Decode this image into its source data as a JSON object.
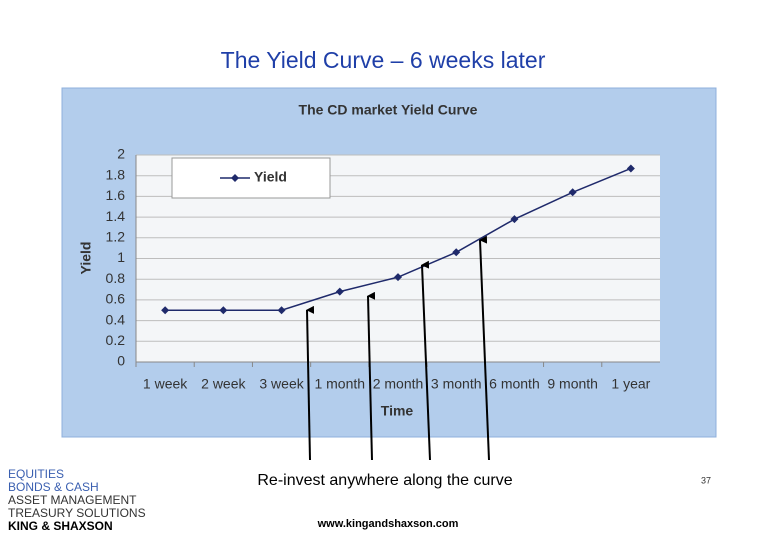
{
  "slide": {
    "title": "The Yield Curve – 6 weeks later",
    "caption": "Re-invest anywhere along the curve",
    "page_number": "37",
    "website": "www.kingandshaxson.com",
    "logo": [
      "EQUITIES",
      "BONDS & CASH",
      "ASSET MANAGEMENT",
      "TREASURY SOLUTIONS",
      "KING & SHAXSON"
    ]
  },
  "chart_data": {
    "type": "line",
    "title": "The CD market Yield Curve",
    "x_label": "Time",
    "y_label": "Yield",
    "categories": [
      "1 week",
      "2 week",
      "3 week",
      "1 month",
      "2 month",
      "3 month",
      "6 month",
      "9 month",
      "1 year"
    ],
    "series": [
      {
        "name": "Yield",
        "color": "#1f2a6b",
        "values": [
          0.5,
          0.5,
          0.5,
          0.68,
          0.82,
          1.06,
          1.38,
          1.64,
          1.87
        ]
      }
    ],
    "ylim": [
      0,
      2
    ],
    "yticks": [
      0,
      0.2,
      0.4,
      0.6,
      0.8,
      1,
      1.2,
      1.4,
      1.6,
      1.8,
      2
    ],
    "grid": true,
    "legend": "top-left"
  }
}
